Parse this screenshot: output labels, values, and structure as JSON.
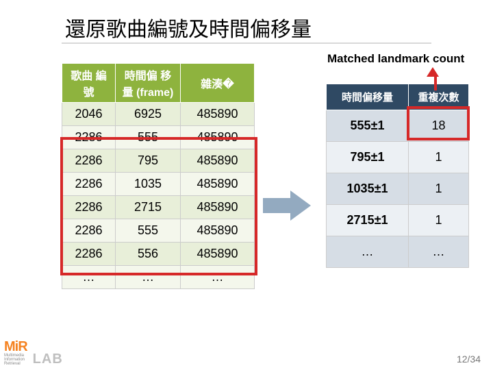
{
  "title": "還原歌曲編號及時間偏移量",
  "subtitle": "Matched landmark count",
  "left_table": {
    "headers": [
      "歌曲\n編號",
      "時間偏\n移量\n(frame)",
      "雜湊�"
    ],
    "rows": [
      [
        "2046",
        "6925",
        "485890"
      ],
      [
        "2286",
        "555",
        "485890"
      ],
      [
        "2286",
        "795",
        "485890"
      ],
      [
        "2286",
        "1035",
        "485890"
      ],
      [
        "2286",
        "2715",
        "485890"
      ],
      [
        "2286",
        "555",
        "485890"
      ],
      [
        "2286",
        "556",
        "485890"
      ],
      [
        "…",
        "…",
        "…"
      ]
    ],
    "col_widths": [
      "78px",
      "95px",
      "108px"
    ],
    "header_bg": "#8eb33e",
    "row_odd_bg": "#e8efd9",
    "row_even_bg": "#f4f7ec"
  },
  "right_table": {
    "headers": [
      "時間偏移量",
      "重複次數"
    ],
    "rows": [
      [
        "555±1",
        "18"
      ],
      [
        "795±1",
        "1"
      ],
      [
        "1035±1",
        "1"
      ],
      [
        "2715±1",
        "1"
      ],
      [
        "…",
        "…"
      ]
    ],
    "col_widths": [
      "120px",
      "88px"
    ],
    "header_bg": "#2f4963",
    "row_odd_bg": "#d6dde5",
    "row_even_bg": "#ecf0f4"
  },
  "highlight_color": "#d62828",
  "arrow_color": "#93aac0",
  "logo": {
    "brand": "MiR",
    "sub1": "Multimedia",
    "sub2": "Information",
    "sub3": "Retrieval",
    "lab": "LAB"
  },
  "page": {
    "current": "12",
    "total": "34"
  }
}
